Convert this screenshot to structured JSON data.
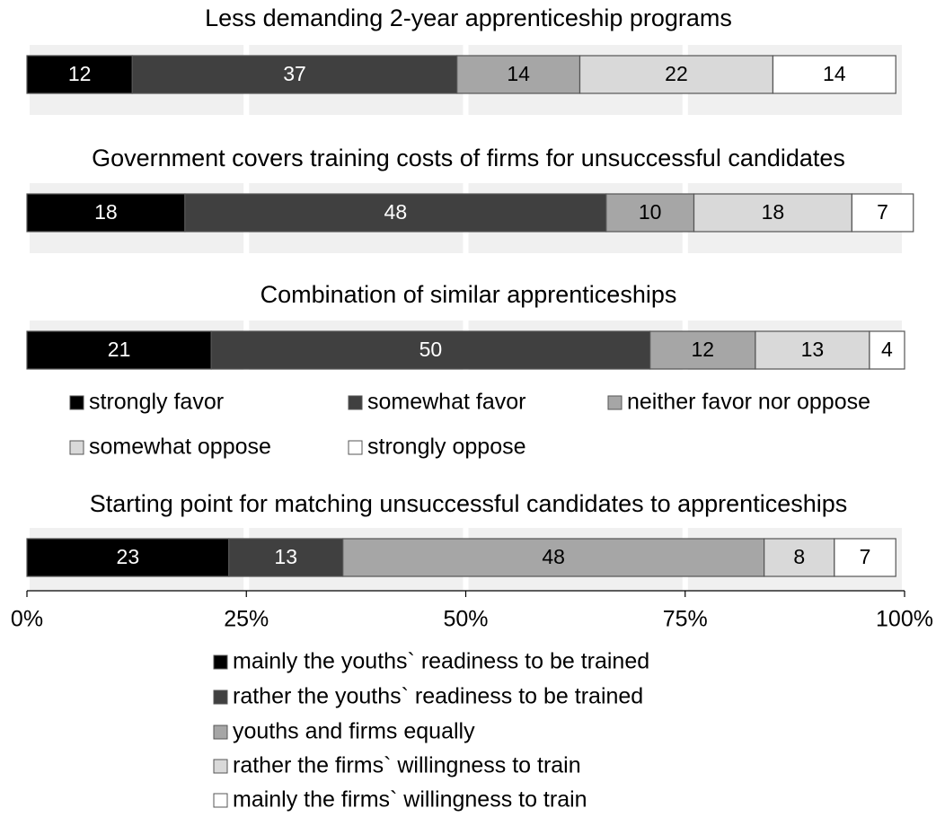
{
  "chart_data": [
    {
      "type": "bar",
      "title": "Less demanding 2-year apprenticeship programs",
      "xlim": [
        0,
        100
      ],
      "grid": true,
      "series": [
        {
          "color": "#000000",
          "values": [
            12
          ]
        },
        {
          "color": "#404040",
          "values": [
            37
          ]
        },
        {
          "color": "#a6a6a6",
          "values": [
            14
          ]
        },
        {
          "color": "#d9d9d9",
          "values": [
            22
          ]
        },
        {
          "color": "#ffffff",
          "values": [
            14
          ]
        }
      ]
    },
    {
      "type": "bar",
      "title": "Government covers training costs of firms for unsuccessful candidates",
      "xlim": [
        0,
        100
      ],
      "grid": true,
      "series": [
        {
          "color": "#000000",
          "values": [
            18
          ]
        },
        {
          "color": "#404040",
          "values": [
            48
          ]
        },
        {
          "color": "#a6a6a6",
          "values": [
            10
          ]
        },
        {
          "color": "#d9d9d9",
          "values": [
            18
          ]
        },
        {
          "color": "#ffffff",
          "values": [
            7
          ]
        }
      ]
    },
    {
      "type": "bar",
      "title": "Combination of similar apprenticeships",
      "xlim": [
        0,
        100
      ],
      "grid": true,
      "series": [
        {
          "name": "strongly favor",
          "color": "#000000",
          "values": [
            21
          ]
        },
        {
          "name": "somewhat favor",
          "color": "#404040",
          "values": [
            50
          ]
        },
        {
          "name": "neither favor nor oppose",
          "color": "#a6a6a6",
          "values": [
            12
          ]
        },
        {
          "name": "somewhat oppose",
          "color": "#d9d9d9",
          "values": [
            13
          ]
        },
        {
          "name": "strongly oppose",
          "color": "#ffffff",
          "values": [
            4
          ]
        }
      ]
    },
    {
      "type": "bar",
      "title": "Starting point for matching unsuccessful candidates to apprenticeships",
      "xlim": [
        0,
        100
      ],
      "grid": true,
      "xticks": [
        {
          "value": 0,
          "label": "0%"
        },
        {
          "value": 25,
          "label": "25%"
        },
        {
          "value": 50,
          "label": "50%"
        },
        {
          "value": 75,
          "label": "75%"
        },
        {
          "value": 100,
          "label": "100%"
        }
      ],
      "series": [
        {
          "name": "mainly the youths` readiness to be trained",
          "color": "#000000",
          "values": [
            23
          ]
        },
        {
          "name": "rather the youths` readiness to be trained",
          "color": "#404040",
          "values": [
            13
          ]
        },
        {
          "name": "youths and firms equally",
          "color": "#a6a6a6",
          "values": [
            48
          ]
        },
        {
          "name": "rather the firms` willingness to train",
          "color": "#d9d9d9",
          "values": [
            8
          ]
        },
        {
          "name": "mainly the firms` willingness to train",
          "color": "#ffffff",
          "values": [
            7
          ]
        }
      ]
    }
  ]
}
